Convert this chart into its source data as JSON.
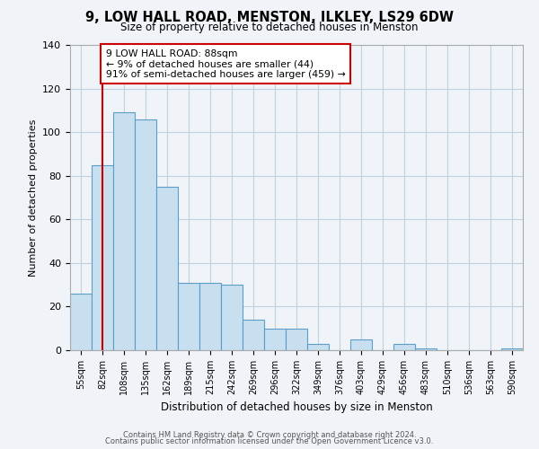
{
  "title": "9, LOW HALL ROAD, MENSTON, ILKLEY, LS29 6DW",
  "subtitle": "Size of property relative to detached houses in Menston",
  "xlabel": "Distribution of detached houses by size in Menston",
  "ylabel": "Number of detached properties",
  "bar_labels": [
    "55sqm",
    "82sqm",
    "108sqm",
    "135sqm",
    "162sqm",
    "189sqm",
    "215sqm",
    "242sqm",
    "269sqm",
    "296sqm",
    "322sqm",
    "349sqm",
    "376sqm",
    "403sqm",
    "429sqm",
    "456sqm",
    "483sqm",
    "510sqm",
    "536sqm",
    "563sqm",
    "590sqm"
  ],
  "bar_values": [
    26,
    85,
    109,
    106,
    75,
    31,
    31,
    30,
    14,
    10,
    10,
    3,
    0,
    5,
    0,
    3,
    1,
    0,
    0,
    0,
    1
  ],
  "bar_color": "#c8dff0",
  "bar_edge_color": "#5a9ec9",
  "vline_x": 1,
  "vline_color": "#cc0000",
  "annotation_lines": [
    "9 LOW HALL ROAD: 88sqm",
    "← 9% of detached houses are smaller (44)",
    "91% of semi-detached houses are larger (459) →"
  ],
  "annotation_box_color": "#ffffff",
  "annotation_box_edge": "#cc0000",
  "ylim": [
    0,
    140
  ],
  "yticks": [
    0,
    20,
    40,
    60,
    80,
    100,
    120,
    140
  ],
  "footer1": "Contains HM Land Registry data © Crown copyright and database right 2024.",
  "footer2": "Contains public sector information licensed under the Open Government Licence v3.0.",
  "bg_color": "#f0f4f8",
  "grid_color": "#c0d0e0"
}
